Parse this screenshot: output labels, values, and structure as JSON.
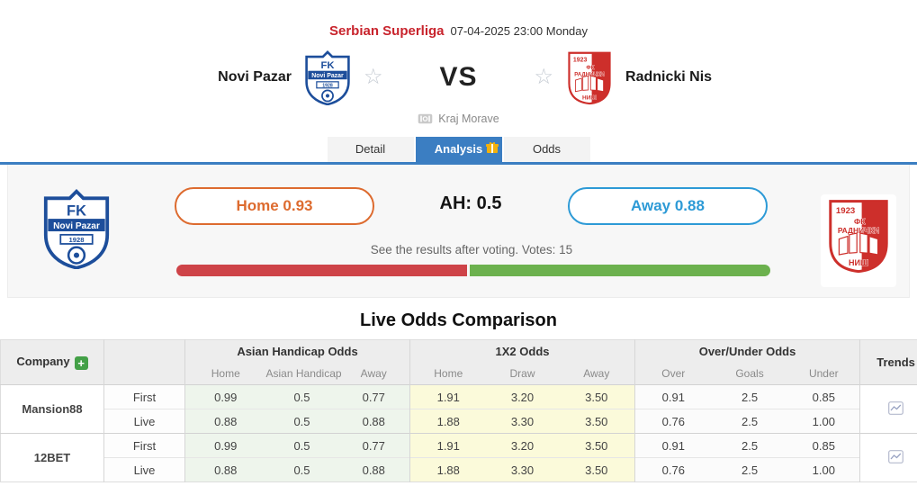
{
  "header": {
    "league": "Serbian Superliga",
    "datetime": "07-04-2025 23:00 Monday",
    "home_team": "Novi Pazar",
    "away_team": "Radnicki Nis",
    "vs": "VS",
    "venue": "Kraj Morave",
    "home_badge": {
      "top": "FK",
      "band": "Novi Pazar",
      "year": "1928"
    },
    "away_badge": {
      "year": "1923",
      "fk": "ФК",
      "name": "РАДНИЧКИ",
      "city": "НИШ"
    }
  },
  "tabs": [
    {
      "label": "Detail"
    },
    {
      "label": "Analysis"
    },
    {
      "label": "Odds"
    }
  ],
  "vote": {
    "home_label": "Home 0.93",
    "ah_label": "AH: 0.5",
    "away_label": "Away 0.88",
    "hint": "See the results after voting. Votes: 15",
    "home_pct": 49,
    "away_pct": 51
  },
  "odds_section": {
    "title": "Live Odds Comparison",
    "company_header": "Company",
    "trends_header": "Trends",
    "groups": [
      {
        "label": "Asian Handicap Odds",
        "cols": [
          "Home",
          "Asian Handicap",
          "Away"
        ]
      },
      {
        "label": "1X2 Odds",
        "cols": [
          "Home",
          "Draw",
          "Away"
        ]
      },
      {
        "label": "Over/Under Odds",
        "cols": [
          "Over",
          "Goals",
          "Under"
        ]
      }
    ],
    "rows": [
      {
        "company": "Mansion88",
        "lines": [
          {
            "type": "First",
            "ah": [
              "0.99",
              "0.5",
              "0.77"
            ],
            "x12": [
              "1.91",
              "3.20",
              "3.50"
            ],
            "ou": [
              "0.91",
              "2.5",
              "0.85"
            ]
          },
          {
            "type": "Live",
            "ah": [
              "0.88",
              "0.5",
              "0.88"
            ],
            "x12": [
              "1.88",
              "3.30",
              "3.50"
            ],
            "ou": [
              "0.76",
              "2.5",
              "1.00"
            ]
          }
        ]
      },
      {
        "company": "12BET",
        "lines": [
          {
            "type": "First",
            "ah": [
              "0.99",
              "0.5",
              "0.77"
            ],
            "x12": [
              "1.91",
              "3.20",
              "3.50"
            ],
            "ou": [
              "0.91",
              "2.5",
              "0.85"
            ]
          },
          {
            "type": "Live",
            "ah": [
              "0.88",
              "0.5",
              "0.88"
            ],
            "x12": [
              "1.88",
              "3.30",
              "3.50"
            ],
            "ou": [
              "0.76",
              "2.5",
              "1.00"
            ]
          }
        ]
      }
    ]
  },
  "theme": {
    "league_red": "#c8232c",
    "tab_blue": "#3b7ec2",
    "home_orange": "#dd6b2f",
    "away_blue": "#2d9ad6",
    "bar_red": "#ce4348",
    "bar_green": "#6cb14e",
    "home_badge_blue": "#1d4e9b",
    "away_badge_red": "#cd2f2b"
  }
}
